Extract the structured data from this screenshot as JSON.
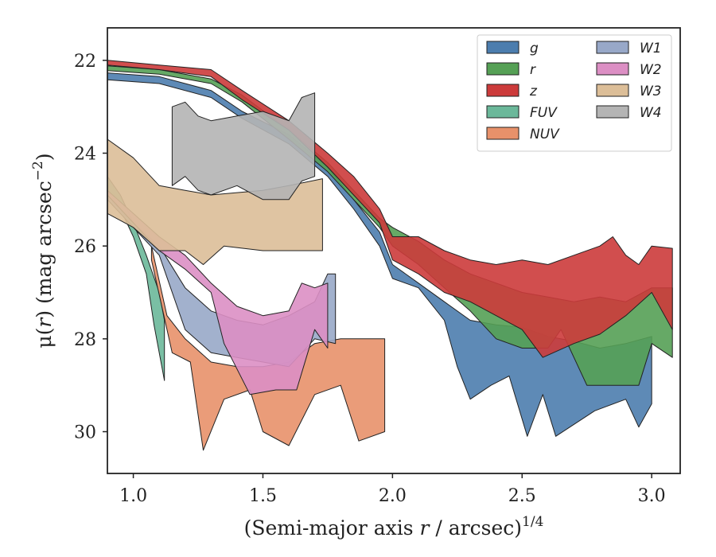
{
  "chart_data": {
    "type": "area",
    "xlabel": "(Semi-major axis r / arcsec)^{1/4}",
    "ylabel": "μ(r) (mag arcsec^{-2})",
    "xlabel_parts": {
      "pre": "(Semi-major axis ",
      "var": "r",
      "post": " / arcsec)",
      "sup": "1/4"
    },
    "ylabel_parts": {
      "pre": "μ(",
      "var": "r",
      "post": ") (mag arcsec",
      "sup": "−2",
      "end": ")"
    },
    "xlim": [
      0.9,
      3.11
    ],
    "ylim": [
      30.9,
      21.3
    ],
    "y_inverted": true,
    "grid": false,
    "legend_position": "top-right",
    "legend_columns": 2,
    "x_ticks": [
      1.0,
      1.5,
      2.0,
      2.5,
      3.0
    ],
    "x_tick_labels": [
      "1.0",
      "1.5",
      "2.0",
      "2.5",
      "3.0"
    ],
    "y_ticks": [
      22,
      24,
      26,
      28,
      30
    ],
    "y_tick_labels": [
      "22",
      "24",
      "26",
      "28",
      "30"
    ],
    "series": [
      {
        "name": "g",
        "color": "#4c7dae",
        "upper": [
          [
            0.9,
            22.27
          ],
          [
            1.1,
            22.35
          ],
          [
            1.3,
            22.65
          ],
          [
            1.42,
            23.1
          ],
          [
            1.6,
            23.6
          ],
          [
            1.75,
            24.3
          ],
          [
            1.85,
            25.0
          ],
          [
            1.95,
            25.7
          ],
          [
            2.0,
            26.4
          ],
          [
            2.1,
            26.8
          ],
          [
            2.2,
            27.2
          ],
          [
            2.3,
            27.6
          ],
          [
            2.4,
            27.7
          ],
          [
            2.5,
            27.75
          ],
          [
            2.6,
            27.95
          ],
          [
            2.7,
            28.05
          ],
          [
            2.8,
            28.2
          ],
          [
            2.9,
            28.1
          ],
          [
            3.0,
            27.95
          ]
        ],
        "lower": [
          [
            0.9,
            22.42
          ],
          [
            1.1,
            22.5
          ],
          [
            1.3,
            22.8
          ],
          [
            1.42,
            23.25
          ],
          [
            1.6,
            23.8
          ],
          [
            1.75,
            24.5
          ],
          [
            1.85,
            25.2
          ],
          [
            1.95,
            26.0
          ],
          [
            2.0,
            26.7
          ],
          [
            2.1,
            26.9
          ],
          [
            2.2,
            27.6
          ],
          [
            2.25,
            28.6
          ],
          [
            2.3,
            29.3
          ],
          [
            2.38,
            29.0
          ],
          [
            2.45,
            28.8
          ],
          [
            2.52,
            30.1
          ],
          [
            2.58,
            29.2
          ],
          [
            2.63,
            30.1
          ],
          [
            2.78,
            29.55
          ],
          [
            2.9,
            29.3
          ],
          [
            2.95,
            29.9
          ],
          [
            3.0,
            29.4
          ]
        ]
      },
      {
        "name": "r",
        "color": "#55a055",
        "upper": [
          [
            0.9,
            22.12
          ],
          [
            1.1,
            22.2
          ],
          [
            1.3,
            22.4
          ],
          [
            1.42,
            22.75
          ],
          [
            1.6,
            23.5
          ],
          [
            1.75,
            24.2
          ],
          [
            1.85,
            24.8
          ],
          [
            1.95,
            25.4
          ],
          [
            2.0,
            25.6
          ],
          [
            2.1,
            25.9
          ],
          [
            2.2,
            26.3
          ],
          [
            2.3,
            26.6
          ],
          [
            2.4,
            26.8
          ],
          [
            2.5,
            27.0
          ],
          [
            2.6,
            27.1
          ],
          [
            2.7,
            27.2
          ],
          [
            2.8,
            27.1
          ],
          [
            2.9,
            27.2
          ],
          [
            3.0,
            26.9
          ],
          [
            3.08,
            26.9
          ]
        ],
        "lower": [
          [
            0.9,
            22.22
          ],
          [
            1.1,
            22.3
          ],
          [
            1.3,
            22.5
          ],
          [
            1.42,
            22.9
          ],
          [
            1.6,
            23.7
          ],
          [
            1.75,
            24.4
          ],
          [
            1.85,
            25.0
          ],
          [
            1.95,
            25.6
          ],
          [
            2.0,
            26.0
          ],
          [
            2.1,
            26.4
          ],
          [
            2.2,
            26.9
          ],
          [
            2.3,
            27.4
          ],
          [
            2.4,
            28.0
          ],
          [
            2.5,
            28.2
          ],
          [
            2.6,
            28.2
          ],
          [
            2.65,
            27.8
          ],
          [
            2.7,
            28.4
          ],
          [
            2.75,
            29.0
          ],
          [
            2.85,
            29.0
          ],
          [
            2.95,
            29.0
          ],
          [
            3.0,
            28.1
          ],
          [
            3.08,
            28.4
          ]
        ]
      },
      {
        "name": "z",
        "color": "#cc3b3b",
        "upper": [
          [
            0.9,
            22.0
          ],
          [
            1.1,
            22.1
          ],
          [
            1.3,
            22.2
          ],
          [
            1.42,
            22.65
          ],
          [
            1.6,
            23.3
          ],
          [
            1.75,
            24.0
          ],
          [
            1.85,
            24.5
          ],
          [
            1.95,
            25.2
          ],
          [
            2.0,
            25.8
          ],
          [
            2.1,
            25.8
          ],
          [
            2.2,
            26.1
          ],
          [
            2.3,
            26.3
          ],
          [
            2.4,
            26.4
          ],
          [
            2.5,
            26.3
          ],
          [
            2.6,
            26.4
          ],
          [
            2.7,
            26.2
          ],
          [
            2.8,
            26.0
          ],
          [
            2.85,
            25.8
          ],
          [
            2.9,
            26.2
          ],
          [
            2.95,
            26.4
          ],
          [
            3.0,
            26.0
          ],
          [
            3.08,
            26.05
          ]
        ],
        "lower": [
          [
            0.9,
            22.1
          ],
          [
            1.1,
            22.2
          ],
          [
            1.3,
            22.35
          ],
          [
            1.42,
            22.85
          ],
          [
            1.6,
            23.5
          ],
          [
            1.75,
            24.3
          ],
          [
            1.85,
            24.9
          ],
          [
            1.95,
            25.5
          ],
          [
            2.0,
            26.3
          ],
          [
            2.1,
            26.6
          ],
          [
            2.2,
            27.0
          ],
          [
            2.3,
            27.2
          ],
          [
            2.4,
            27.5
          ],
          [
            2.5,
            27.8
          ],
          [
            2.58,
            28.4
          ],
          [
            2.7,
            28.1
          ],
          [
            2.8,
            27.9
          ],
          [
            2.9,
            27.5
          ],
          [
            3.0,
            27.0
          ],
          [
            3.08,
            27.8
          ]
        ]
      },
      {
        "name": "FUV",
        "color": "#6bb89a",
        "upper": [
          [
            0.9,
            24.5
          ],
          [
            0.95,
            24.9
          ],
          [
            1.0,
            25.5
          ],
          [
            1.05,
            26.2
          ],
          [
            1.1,
            27.0
          ],
          [
            1.12,
            27.6
          ]
        ],
        "lower": [
          [
            0.9,
            24.8
          ],
          [
            0.95,
            25.2
          ],
          [
            1.0,
            25.8
          ],
          [
            1.05,
            26.6
          ],
          [
            1.08,
            27.7
          ],
          [
            1.12,
            28.9
          ]
        ]
      },
      {
        "name": "NUV",
        "color": "#e8916a",
        "upper": [
          [
            1.07,
            26.0
          ],
          [
            1.13,
            27.5
          ],
          [
            1.2,
            28.0
          ],
          [
            1.3,
            28.5
          ],
          [
            1.4,
            28.6
          ],
          [
            1.5,
            28.6
          ],
          [
            1.6,
            28.5
          ],
          [
            1.7,
            28.1
          ],
          [
            1.8,
            28.0
          ],
          [
            1.9,
            28.0
          ],
          [
            1.97,
            28.0
          ]
        ],
        "lower": [
          [
            1.07,
            26.3
          ],
          [
            1.15,
            28.3
          ],
          [
            1.22,
            28.5
          ],
          [
            1.27,
            30.4
          ],
          [
            1.35,
            29.3
          ],
          [
            1.45,
            29.1
          ],
          [
            1.5,
            30.0
          ],
          [
            1.6,
            30.3
          ],
          [
            1.7,
            29.2
          ],
          [
            1.8,
            29.0
          ],
          [
            1.87,
            30.2
          ],
          [
            1.97,
            30.0
          ]
        ]
      },
      {
        "name": "W1",
        "color": "#98a8c8",
        "upper": [
          [
            0.9,
            24.9
          ],
          [
            1.0,
            25.5
          ],
          [
            1.1,
            26.0
          ],
          [
            1.2,
            26.9
          ],
          [
            1.3,
            27.4
          ],
          [
            1.4,
            27.6
          ],
          [
            1.5,
            27.7
          ],
          [
            1.6,
            27.5
          ],
          [
            1.7,
            27.2
          ],
          [
            1.75,
            26.6
          ],
          [
            1.78,
            26.6
          ]
        ],
        "lower": [
          [
            0.9,
            25.0
          ],
          [
            1.0,
            25.6
          ],
          [
            1.1,
            26.2
          ],
          [
            1.2,
            27.8
          ],
          [
            1.3,
            28.3
          ],
          [
            1.4,
            28.4
          ],
          [
            1.5,
            28.5
          ],
          [
            1.6,
            28.6
          ],
          [
            1.7,
            28.0
          ],
          [
            1.78,
            28.1
          ]
        ]
      },
      {
        "name": "W2",
        "color": "#dc8fc4",
        "upper": [
          [
            0.9,
            24.8
          ],
          [
            1.0,
            25.3
          ],
          [
            1.1,
            25.8
          ],
          [
            1.2,
            26.2
          ],
          [
            1.3,
            26.8
          ],
          [
            1.4,
            27.3
          ],
          [
            1.5,
            27.5
          ],
          [
            1.6,
            27.4
          ],
          [
            1.65,
            26.8
          ],
          [
            1.7,
            26.9
          ],
          [
            1.75,
            26.8
          ]
        ],
        "lower": [
          [
            0.9,
            24.9
          ],
          [
            1.0,
            25.5
          ],
          [
            1.1,
            26.1
          ],
          [
            1.2,
            26.5
          ],
          [
            1.3,
            27.0
          ],
          [
            1.35,
            28.1
          ],
          [
            1.45,
            29.2
          ],
          [
            1.55,
            29.1
          ],
          [
            1.63,
            29.1
          ],
          [
            1.7,
            27.8
          ],
          [
            1.75,
            28.2
          ]
        ]
      },
      {
        "name": "W3",
        "color": "#dcbe98",
        "upper": [
          [
            0.9,
            23.7
          ],
          [
            1.0,
            24.1
          ],
          [
            1.1,
            24.7
          ],
          [
            1.2,
            24.8
          ],
          [
            1.3,
            24.9
          ],
          [
            1.5,
            24.8
          ],
          [
            1.6,
            24.7
          ],
          [
            1.73,
            24.55
          ]
        ],
        "lower": [
          [
            0.9,
            25.3
          ],
          [
            1.0,
            25.6
          ],
          [
            1.1,
            26.1
          ],
          [
            1.2,
            26.1
          ],
          [
            1.27,
            26.4
          ],
          [
            1.35,
            26.0
          ],
          [
            1.5,
            26.1
          ],
          [
            1.73,
            26.1
          ]
        ]
      },
      {
        "name": "W4",
        "color": "#b4b4b4",
        "upper": [
          [
            1.15,
            23.0
          ],
          [
            1.2,
            22.9
          ],
          [
            1.25,
            23.2
          ],
          [
            1.3,
            23.3
          ],
          [
            1.4,
            23.2
          ],
          [
            1.5,
            23.1
          ],
          [
            1.6,
            23.3
          ],
          [
            1.65,
            22.8
          ],
          [
            1.7,
            22.7
          ]
        ],
        "lower": [
          [
            1.15,
            24.7
          ],
          [
            1.2,
            24.5
          ],
          [
            1.25,
            24.8
          ],
          [
            1.3,
            24.9
          ],
          [
            1.4,
            24.7
          ],
          [
            1.5,
            25.0
          ],
          [
            1.6,
            25.0
          ],
          [
            1.65,
            24.6
          ],
          [
            1.7,
            24.5
          ]
        ]
      }
    ]
  }
}
